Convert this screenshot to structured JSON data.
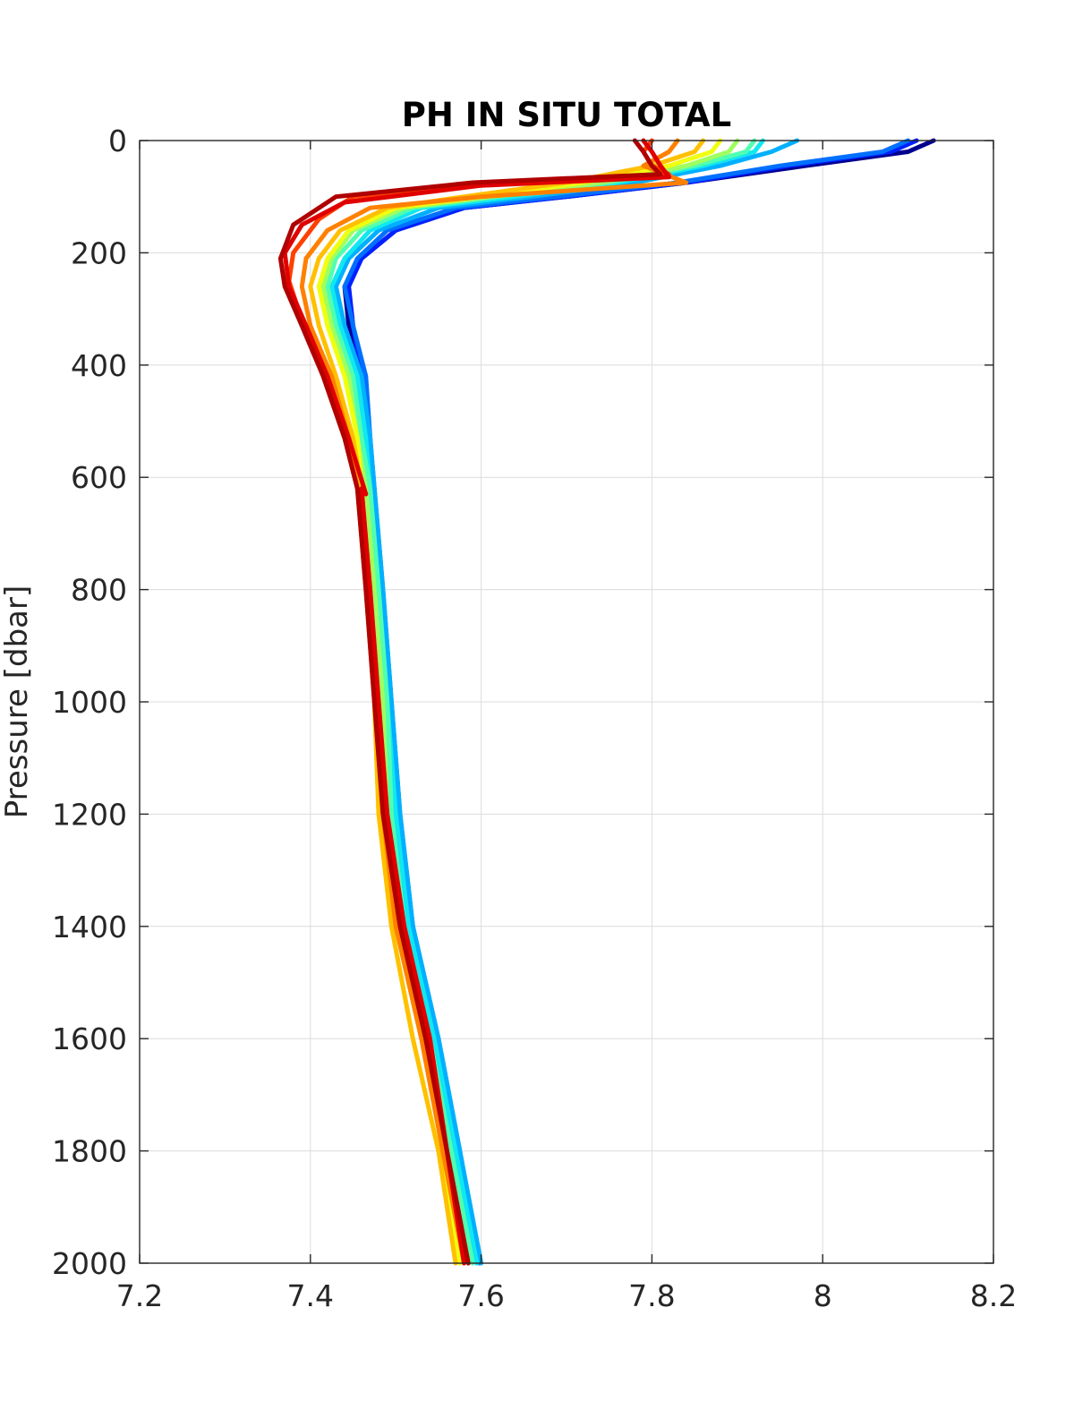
{
  "chart_data": {
    "type": "line",
    "title": "PH IN SITU TOTAL",
    "xlabel": "",
    "ylabel": "Pressure [dbar]",
    "xlim": [
      7.2,
      8.2
    ],
    "ylim": [
      0,
      2000
    ],
    "y_reversed": true,
    "grid": true,
    "colormap": "jet",
    "xticks": [
      7.2,
      7.4,
      7.6,
      7.8,
      8,
      8.2
    ],
    "xtick_labels": [
      "7.2",
      "7.4",
      "7.6",
      "7.8",
      "8",
      "8.2"
    ],
    "yticks": [
      0,
      200,
      400,
      600,
      800,
      1000,
      1200,
      1400,
      1600,
      1800,
      2000
    ],
    "ytick_labels": [
      "0",
      "200",
      "400",
      "600",
      "800",
      "1000",
      "1200",
      "1400",
      "1600",
      "1800",
      "2000"
    ],
    "series": [
      {
        "color": "#00008f",
        "points": [
          [
            8.13,
            0
          ],
          [
            8.1,
            20
          ],
          [
            7.98,
            45
          ],
          [
            7.84,
            75
          ],
          [
            7.7,
            100
          ],
          [
            7.58,
            120
          ],
          [
            7.5,
            160
          ],
          [
            7.46,
            210
          ],
          [
            7.44,
            260
          ],
          [
            7.445,
            330
          ],
          [
            7.455,
            420
          ],
          [
            7.46,
            530
          ],
          [
            7.46,
            620
          ],
          [
            7.47,
            800
          ]
        ]
      },
      {
        "color": "#0020ff",
        "points": [
          [
            8.11,
            0
          ],
          [
            8.08,
            20
          ],
          [
            7.96,
            45
          ],
          [
            7.84,
            75
          ],
          [
            7.7,
            100
          ],
          [
            7.58,
            120
          ],
          [
            7.5,
            160
          ],
          [
            7.46,
            210
          ],
          [
            7.445,
            260
          ],
          [
            7.45,
            330
          ],
          [
            7.46,
            420
          ],
          [
            7.465,
            530
          ],
          [
            7.47,
            620
          ],
          [
            7.48,
            800
          ],
          [
            7.49,
            1000
          ],
          [
            7.5,
            1200
          ],
          [
            7.52,
            1400
          ],
          [
            7.545,
            1600
          ],
          [
            7.57,
            1800
          ],
          [
            7.595,
            2000
          ]
        ]
      },
      {
        "color": "#0070ff",
        "points": [
          [
            8.1,
            0
          ],
          [
            8.07,
            20
          ],
          [
            7.95,
            45
          ],
          [
            7.83,
            75
          ],
          [
            7.69,
            100
          ],
          [
            7.57,
            120
          ],
          [
            7.49,
            160
          ],
          [
            7.455,
            210
          ],
          [
            7.44,
            260
          ],
          [
            7.45,
            330
          ],
          [
            7.465,
            420
          ],
          [
            7.47,
            530
          ],
          [
            7.475,
            620
          ],
          [
            7.485,
            800
          ],
          [
            7.495,
            1000
          ],
          [
            7.505,
            1200
          ],
          [
            7.52,
            1400
          ],
          [
            7.55,
            1600
          ],
          [
            7.575,
            1800
          ],
          [
            7.598,
            2000
          ]
        ]
      },
      {
        "color": "#00b0ff",
        "points": [
          [
            7.97,
            0
          ],
          [
            7.94,
            20
          ],
          [
            7.88,
            45
          ],
          [
            7.78,
            75
          ],
          [
            7.66,
            100
          ],
          [
            7.55,
            120
          ],
          [
            7.48,
            160
          ],
          [
            7.445,
            210
          ],
          [
            7.43,
            260
          ],
          [
            7.44,
            330
          ],
          [
            7.46,
            420
          ],
          [
            7.47,
            530
          ],
          [
            7.475,
            620
          ],
          [
            7.485,
            800
          ],
          [
            7.495,
            1000
          ],
          [
            7.505,
            1200
          ],
          [
            7.52,
            1400
          ],
          [
            7.55,
            1600
          ],
          [
            7.575,
            1800
          ],
          [
            7.6,
            2000
          ]
        ]
      },
      {
        "color": "#10e8f0",
        "points": [
          [
            7.93,
            0
          ],
          [
            7.92,
            20
          ],
          [
            7.86,
            45
          ],
          [
            7.76,
            75
          ],
          [
            7.64,
            100
          ],
          [
            7.53,
            120
          ],
          [
            7.47,
            160
          ],
          [
            7.44,
            210
          ],
          [
            7.425,
            260
          ],
          [
            7.435,
            330
          ],
          [
            7.455,
            420
          ],
          [
            7.465,
            530
          ],
          [
            7.47,
            620
          ],
          [
            7.48,
            800
          ],
          [
            7.49,
            1000
          ],
          [
            7.5,
            1200
          ],
          [
            7.515,
            1400
          ],
          [
            7.545,
            1600
          ],
          [
            7.57,
            1800
          ],
          [
            7.595,
            2000
          ]
        ]
      },
      {
        "color": "#50ffb0",
        "points": [
          [
            7.92,
            0
          ],
          [
            7.91,
            20
          ],
          [
            7.85,
            45
          ],
          [
            7.75,
            75
          ],
          [
            7.62,
            100
          ],
          [
            7.52,
            120
          ],
          [
            7.46,
            160
          ],
          [
            7.43,
            210
          ],
          [
            7.42,
            260
          ],
          [
            7.43,
            330
          ],
          [
            7.45,
            420
          ],
          [
            7.46,
            530
          ],
          [
            7.47,
            620
          ],
          [
            7.48,
            800
          ],
          [
            7.49,
            1000
          ],
          [
            7.495,
            1200
          ],
          [
            7.51,
            1400
          ],
          [
            7.54,
            1600
          ],
          [
            7.565,
            1800
          ],
          [
            7.59,
            2000
          ]
        ]
      },
      {
        "color": "#a0ff60",
        "points": [
          [
            7.9,
            0
          ],
          [
            7.89,
            20
          ],
          [
            7.84,
            45
          ],
          [
            7.74,
            75
          ],
          [
            7.61,
            100
          ],
          [
            7.51,
            120
          ],
          [
            7.45,
            160
          ],
          [
            7.425,
            210
          ],
          [
            7.415,
            260
          ],
          [
            7.425,
            330
          ],
          [
            7.445,
            420
          ],
          [
            7.455,
            530
          ],
          [
            7.465,
            620
          ],
          [
            7.475,
            800
          ],
          [
            7.485,
            1000
          ],
          [
            7.49,
            1200
          ],
          [
            7.505,
            1400
          ],
          [
            7.535,
            1600
          ],
          [
            7.56,
            1800
          ],
          [
            7.585,
            2000
          ]
        ]
      },
      {
        "color": "#f0ff10",
        "points": [
          [
            7.88,
            0
          ],
          [
            7.87,
            20
          ],
          [
            7.82,
            45
          ],
          [
            7.72,
            75
          ],
          [
            7.6,
            100
          ],
          [
            7.5,
            120
          ],
          [
            7.445,
            160
          ],
          [
            7.42,
            210
          ],
          [
            7.41,
            260
          ],
          [
            7.42,
            330
          ],
          [
            7.44,
            420
          ],
          [
            7.455,
            530
          ],
          [
            7.46,
            620
          ],
          [
            7.47,
            800
          ],
          [
            7.475,
            1000
          ],
          [
            7.48,
            1200
          ],
          [
            7.495,
            1400
          ],
          [
            7.52,
            1600
          ],
          [
            7.55,
            1800
          ],
          [
            7.575,
            2000
          ]
        ]
      },
      {
        "color": "#ffc000",
        "points": [
          [
            7.86,
            0
          ],
          [
            7.85,
            20
          ],
          [
            7.8,
            45
          ],
          [
            7.7,
            75
          ],
          [
            7.58,
            100
          ],
          [
            7.49,
            120
          ],
          [
            7.435,
            160
          ],
          [
            7.41,
            210
          ],
          [
            7.4,
            260
          ],
          [
            7.41,
            330
          ],
          [
            7.43,
            420
          ],
          [
            7.45,
            530
          ],
          [
            7.46,
            620
          ],
          [
            7.47,
            800
          ],
          [
            7.475,
            1000
          ],
          [
            7.48,
            1200
          ],
          [
            7.495,
            1400
          ],
          [
            7.52,
            1600
          ],
          [
            7.55,
            1800
          ],
          [
            7.57,
            2000
          ]
        ]
      },
      {
        "color": "#ff8000",
        "points": [
          [
            7.83,
            0
          ],
          [
            7.82,
            20
          ],
          [
            7.79,
            45
          ],
          [
            7.84,
            75
          ],
          [
            7.6,
            100
          ],
          [
            7.47,
            120
          ],
          [
            7.42,
            160
          ],
          [
            7.395,
            210
          ],
          [
            7.39,
            260
          ],
          [
            7.4,
            330
          ],
          [
            7.425,
            420
          ],
          [
            7.445,
            530
          ],
          [
            7.455,
            620
          ],
          [
            7.465,
            800
          ],
          [
            7.475,
            1000
          ],
          [
            7.485,
            1200
          ],
          [
            7.5,
            1400
          ],
          [
            7.53,
            1600
          ],
          [
            7.555,
            1800
          ],
          [
            7.58,
            2000
          ]
        ]
      },
      {
        "color": "#ff4000",
        "points": [
          [
            7.8,
            0
          ],
          [
            7.79,
            20
          ],
          [
            7.8,
            45
          ],
          [
            7.82,
            60
          ],
          [
            7.6,
            75
          ],
          [
            7.45,
            100
          ],
          [
            7.41,
            140
          ],
          [
            7.38,
            200
          ],
          [
            7.375,
            250
          ],
          [
            7.39,
            320
          ],
          [
            7.415,
            420
          ],
          [
            7.44,
            530
          ],
          [
            7.455,
            620
          ]
        ]
      },
      {
        "color": "#e00000",
        "points": [
          [
            7.79,
            0
          ],
          [
            7.8,
            20
          ],
          [
            7.81,
            45
          ],
          [
            7.82,
            65
          ],
          [
            7.6,
            80
          ],
          [
            7.44,
            110
          ],
          [
            7.39,
            150
          ],
          [
            7.37,
            200
          ],
          [
            7.375,
            260
          ],
          [
            7.395,
            330
          ],
          [
            7.42,
            420
          ],
          [
            7.445,
            530
          ],
          [
            7.465,
            630
          ],
          [
            7.46,
            620
          ],
          [
            7.47,
            800
          ],
          [
            7.48,
            1000
          ],
          [
            7.49,
            1200
          ],
          [
            7.51,
            1400
          ],
          [
            7.54,
            1600
          ],
          [
            7.56,
            1800
          ],
          [
            7.58,
            2000
          ]
        ]
      },
      {
        "color": "#b00000",
        "points": [
          [
            7.78,
            0
          ],
          [
            7.79,
            20
          ],
          [
            7.8,
            45
          ],
          [
            7.81,
            60
          ],
          [
            7.59,
            75
          ],
          [
            7.43,
            100
          ],
          [
            7.38,
            150
          ],
          [
            7.365,
            210
          ],
          [
            7.37,
            260
          ],
          [
            7.39,
            330
          ],
          [
            7.415,
            420
          ],
          [
            7.44,
            530
          ],
          [
            7.455,
            620
          ],
          [
            7.465,
            800
          ],
          [
            7.475,
            1000
          ],
          [
            7.485,
            1200
          ],
          [
            7.505,
            1400
          ],
          [
            7.535,
            1600
          ],
          [
            7.56,
            1800
          ],
          [
            7.585,
            2000
          ]
        ]
      }
    ]
  }
}
